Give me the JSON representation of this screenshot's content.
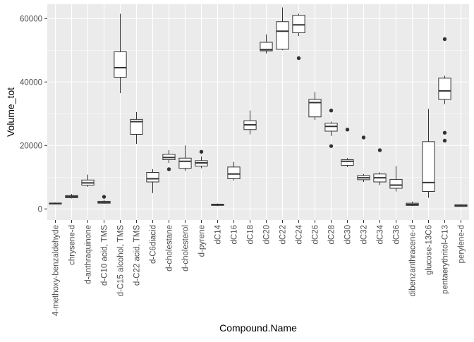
{
  "chart_data": {
    "type": "boxplot",
    "title": "",
    "xlabel": "Compound.Name",
    "ylabel": "Volume_tot",
    "ylim": [
      -3500,
      64500
    ],
    "yticks": [
      0,
      20000,
      40000,
      60000
    ],
    "ytick_labels": [
      "0",
      "20000",
      "40000",
      "60000"
    ],
    "grid": true,
    "legend": "none",
    "colors": {
      "panel": "#ebebeb",
      "grid": "#ffffff",
      "box_fill": "#ffffff",
      "box_stroke": "#333333",
      "outlier": "#333333"
    },
    "categories": [
      "4-methoxy-benzaldehyde",
      "chrysene-d",
      "d-anthraquinone",
      "d-C10 acid, TMS",
      "d-C15 alcohol, TMS",
      "d-C22 acid, TMS",
      "d-C6diacid",
      "d-cholestane",
      "d-cholesterol",
      "d-pyrene",
      "dC14",
      "dC16",
      "dC18",
      "dC20",
      "dC22",
      "dC24",
      "dC26",
      "dC28",
      "dC30",
      "dC32",
      "dC34",
      "dC36",
      "dibenzanthracene-d",
      "glucose-13C6",
      "pentaerythritol-C13",
      "perylene-d"
    ],
    "boxes": [
      {
        "min": 1400,
        "q1": 1550,
        "median": 1700,
        "q3": 1850,
        "max": 2000,
        "outliers": []
      },
      {
        "min": 3300,
        "q1": 3500,
        "median": 3900,
        "q3": 4200,
        "max": 4700,
        "outliers": []
      },
      {
        "min": 7000,
        "q1": 7500,
        "median": 8200,
        "q3": 9100,
        "max": 10800,
        "outliers": []
      },
      {
        "min": 1600,
        "q1": 1800,
        "median": 2000,
        "q3": 2400,
        "max": 2800,
        "outliers": [
          3800
        ]
      },
      {
        "min": 36500,
        "q1": 41500,
        "median": 44500,
        "q3": 49500,
        "max": 61500,
        "outliers": []
      },
      {
        "min": 20500,
        "q1": 23500,
        "median": 27500,
        "q3": 28200,
        "max": 30500,
        "outliers": []
      },
      {
        "min": 5000,
        "q1": 8500,
        "median": 9500,
        "q3": 11500,
        "max": 12500,
        "outliers": []
      },
      {
        "min": 14500,
        "q1": 15500,
        "median": 16200,
        "q3": 17200,
        "max": 18500,
        "outliers": [
          12500
        ]
      },
      {
        "min": 12000,
        "q1": 12800,
        "median": 15000,
        "q3": 16000,
        "max": 20000,
        "outliers": []
      },
      {
        "min": 12800,
        "q1": 13500,
        "median": 14500,
        "q3": 15200,
        "max": 16500,
        "outliers": [
          18000
        ]
      },
      {
        "min": 900,
        "q1": 1100,
        "median": 1300,
        "q3": 1500,
        "max": 1700,
        "outliers": []
      },
      {
        "min": 9000,
        "q1": 9500,
        "median": 11000,
        "q3": 13200,
        "max": 14800,
        "outliers": []
      },
      {
        "min": 23500,
        "q1": 25000,
        "median": 26500,
        "q3": 27800,
        "max": 31000,
        "outliers": []
      },
      {
        "min": 49000,
        "q1": 49800,
        "median": 50200,
        "q3": 52500,
        "max": 55000,
        "outliers": []
      },
      {
        "min": 50000,
        "q1": 50300,
        "median": 56000,
        "q3": 59000,
        "max": 63500,
        "outliers": []
      },
      {
        "min": 54500,
        "q1": 55500,
        "median": 58000,
        "q3": 61000,
        "max": 61500,
        "outliers": [
          47500
        ]
      },
      {
        "min": 28000,
        "q1": 29000,
        "median": 33500,
        "q3": 34500,
        "max": 36800,
        "outliers": []
      },
      {
        "min": 23000,
        "q1": 24500,
        "median": 26000,
        "q3": 27000,
        "max": 27500,
        "outliers": [
          31000,
          19800
        ]
      },
      {
        "min": 13200,
        "q1": 13700,
        "median": 15000,
        "q3": 15500,
        "max": 16000,
        "outliers": [
          25000
        ]
      },
      {
        "min": 8500,
        "q1": 9200,
        "median": 9800,
        "q3": 10500,
        "max": 11000,
        "outliers": [
          22500
        ]
      },
      {
        "min": 7500,
        "q1": 8500,
        "median": 9800,
        "q3": 11000,
        "max": 11500,
        "outliers": [
          18500
        ]
      },
      {
        "min": 5500,
        "q1": 6500,
        "median": 7500,
        "q3": 9300,
        "max": 13500,
        "outliers": []
      },
      {
        "min": 900,
        "q1": 1100,
        "median": 1400,
        "q3": 1800,
        "max": 2300,
        "outliers": []
      },
      {
        "min": 3500,
        "q1": 5500,
        "median": 8300,
        "q3": 21200,
        "max": 31500,
        "outliers": []
      },
      {
        "min": 33000,
        "q1": 34500,
        "median": 37200,
        "q3": 41200,
        "max": 42000,
        "outliers": [
          53500,
          24000,
          21500
        ]
      },
      {
        "min": 700,
        "q1": 800,
        "median": 1000,
        "q3": 1300,
        "max": 1500,
        "outliers": []
      }
    ]
  }
}
